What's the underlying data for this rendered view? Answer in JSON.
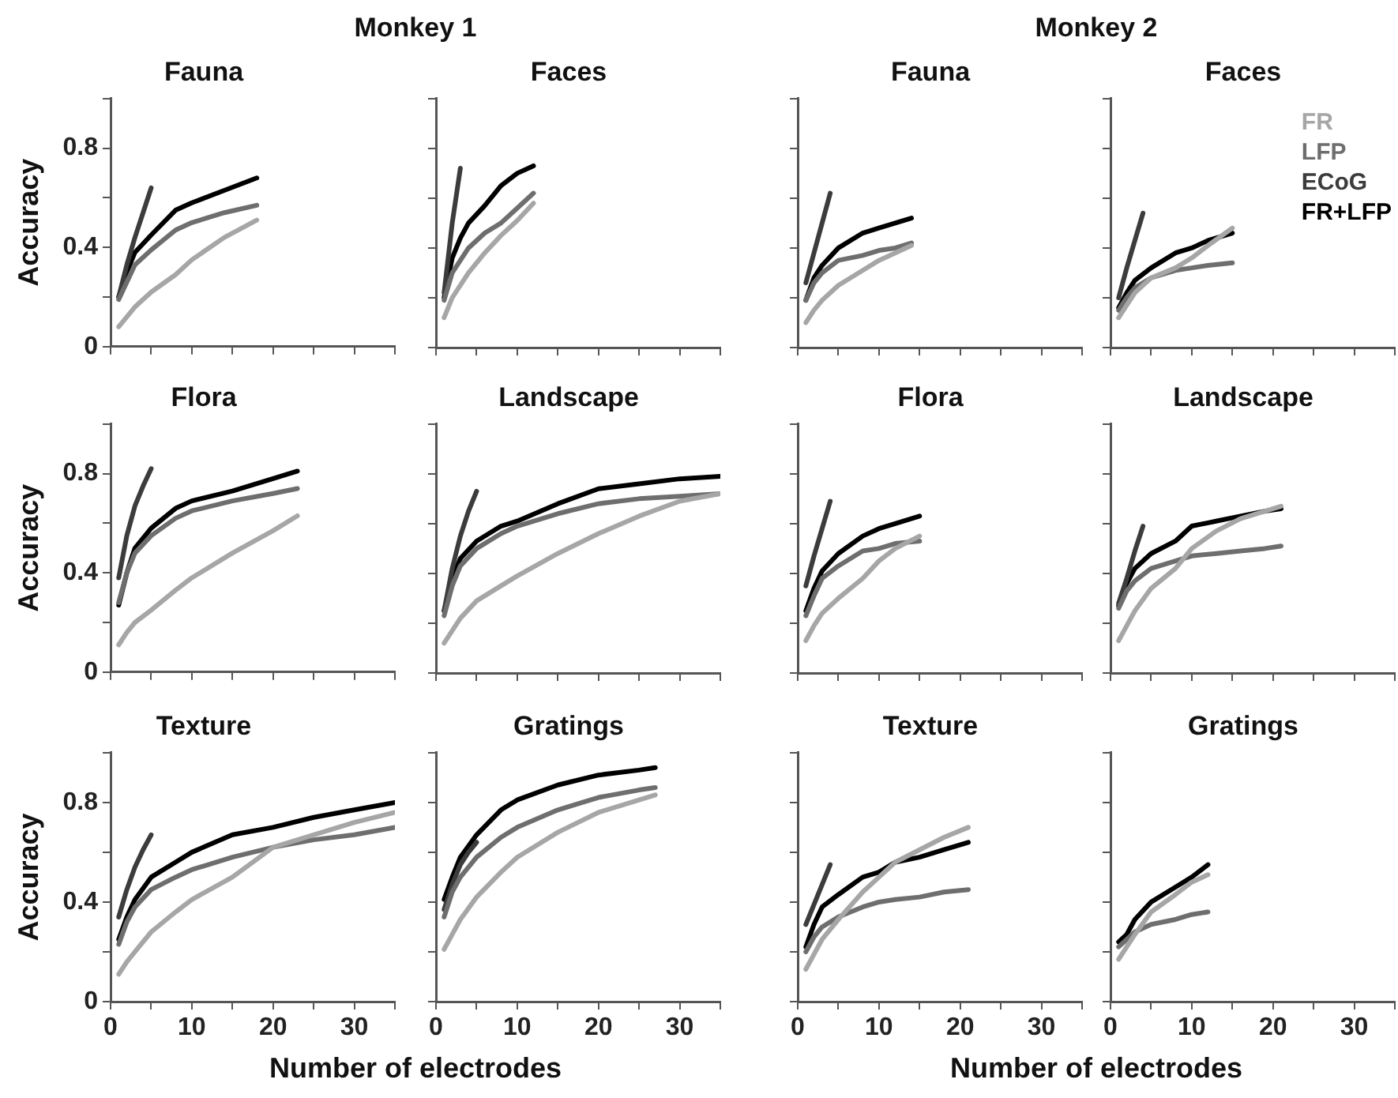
{
  "chart_data": [
    {
      "type": "line",
      "title": "Fauna",
      "annotations": [
        "Monkey 1"
      ],
      "ylabel": "Accuracy",
      "xlim": [
        0,
        35
      ],
      "xticks": [
        0,
        {
          "value": 5,
          "label": null
        },
        10,
        {
          "value": 15,
          "label": null
        },
        20,
        {
          "value": 25,
          "label": null
        },
        30,
        {
          "value": 35,
          "label": null
        }
      ],
      "ylim": [
        0,
        1
      ],
      "yticks": [
        0,
        {
          "value": 0.2,
          "label": null
        },
        0.4,
        {
          "value": 0.6,
          "label": null
        },
        0.8,
        {
          "value": 1,
          "label": null
        }
      ],
      "tick_labels": "y",
      "series": [
        {
          "color": "#a6a6a6",
          "x": [
            1,
            3,
            5,
            8,
            10,
            14,
            18
          ],
          "values": [
            0.08,
            0.16,
            0.22,
            0.29,
            0.35,
            0.44,
            0.51
          ]
        },
        {
          "color": "#6e6e6e",
          "x": [
            1,
            3,
            5,
            8,
            10,
            14,
            18
          ],
          "values": [
            0.19,
            0.33,
            0.39,
            0.47,
            0.5,
            0.54,
            0.57
          ]
        },
        {
          "color": "#3c3c3c",
          "x": [
            1,
            2,
            3,
            4,
            5
          ],
          "values": [
            0.2,
            0.33,
            0.44,
            0.54,
            0.64
          ]
        },
        {
          "color": "#000000",
          "x": [
            1,
            2,
            3,
            5,
            8,
            10,
            14,
            18
          ],
          "values": [
            0.2,
            0.3,
            0.38,
            0.45,
            0.55,
            0.58,
            0.63,
            0.68
          ]
        }
      ]
    },
    {
      "type": "line",
      "title": "Faces",
      "xlim": [
        0,
        35
      ],
      "xticks": [
        0,
        {
          "value": 5,
          "label": null
        },
        10,
        {
          "value": 15,
          "label": null
        },
        20,
        {
          "value": 25,
          "label": null
        },
        30,
        {
          "value": 35,
          "label": null
        }
      ],
      "ylim": [
        0,
        1
      ],
      "yticks": [
        0,
        {
          "value": 0.2,
          "label": null
        },
        0.4,
        {
          "value": 0.6,
          "label": null
        },
        0.8,
        {
          "value": 1,
          "label": null
        }
      ],
      "tick_labels": false,
      "series": [
        {
          "color": "#a6a6a6",
          "x": [
            1,
            2,
            4,
            6,
            8,
            10,
            12
          ],
          "values": [
            0.12,
            0.2,
            0.3,
            0.38,
            0.45,
            0.51,
            0.58
          ]
        },
        {
          "color": "#6e6e6e",
          "x": [
            1,
            2,
            4,
            6,
            8,
            10,
            12
          ],
          "values": [
            0.19,
            0.3,
            0.4,
            0.46,
            0.5,
            0.56,
            0.62
          ]
        },
        {
          "color": "#3c3c3c",
          "x": [
            1,
            2,
            3
          ],
          "values": [
            0.22,
            0.5,
            0.72
          ]
        },
        {
          "color": "#000000",
          "x": [
            1,
            2,
            3,
            4,
            6,
            8,
            10,
            12
          ],
          "values": [
            0.2,
            0.36,
            0.44,
            0.5,
            0.57,
            0.65,
            0.7,
            0.73
          ]
        }
      ]
    },
    {
      "type": "line",
      "title": "Fauna",
      "annotations": [
        "Monkey 2"
      ],
      "xlim": [
        0,
        35
      ],
      "xticks": [
        0,
        {
          "value": 5,
          "label": null
        },
        10,
        {
          "value": 15,
          "label": null
        },
        20,
        {
          "value": 25,
          "label": null
        },
        30,
        {
          "value": 35,
          "label": null
        }
      ],
      "ylim": [
        0,
        1
      ],
      "yticks": [
        0,
        {
          "value": 0.2,
          "label": null
        },
        0.4,
        {
          "value": 0.6,
          "label": null
        },
        0.8,
        {
          "value": 1,
          "label": null
        }
      ],
      "tick_labels": false,
      "series": [
        {
          "color": "#a6a6a6",
          "x": [
            1,
            2,
            3,
            5,
            8,
            10,
            12,
            14
          ],
          "values": [
            0.1,
            0.15,
            0.19,
            0.25,
            0.31,
            0.35,
            0.38,
            0.41
          ]
        },
        {
          "color": "#6e6e6e",
          "x": [
            1,
            2,
            3,
            5,
            8,
            10,
            12,
            14
          ],
          "values": [
            0.19,
            0.26,
            0.3,
            0.35,
            0.37,
            0.39,
            0.4,
            0.42
          ]
        },
        {
          "color": "#3c3c3c",
          "x": [
            1,
            2,
            3,
            4
          ],
          "values": [
            0.26,
            0.38,
            0.5,
            0.62
          ]
        },
        {
          "color": "#000000",
          "x": [
            1,
            2,
            3,
            5,
            8,
            10,
            12,
            14
          ],
          "values": [
            0.19,
            0.28,
            0.33,
            0.4,
            0.46,
            0.48,
            0.5,
            0.52
          ]
        }
      ]
    },
    {
      "type": "line",
      "title": "Faces",
      "legend": "top right",
      "xlim": [
        0,
        35
      ],
      "xticks": [
        0,
        {
          "value": 5,
          "label": null
        },
        10,
        {
          "value": 15,
          "label": null
        },
        20,
        {
          "value": 25,
          "label": null
        },
        30,
        {
          "value": 35,
          "label": null
        }
      ],
      "ylim": [
        0,
        1
      ],
      "yticks": [
        0,
        {
          "value": 0.2,
          "label": null
        },
        0.4,
        {
          "value": 0.6,
          "label": null
        },
        0.8,
        {
          "value": 1,
          "label": null
        }
      ],
      "tick_labels": false,
      "series": [
        {
          "name": "FR",
          "color": "#a6a6a6",
          "x": [
            1,
            2,
            3,
            5,
            8,
            10,
            12,
            15
          ],
          "values": [
            0.12,
            0.17,
            0.22,
            0.28,
            0.32,
            0.36,
            0.41,
            0.48
          ]
        },
        {
          "name": "LFP",
          "color": "#6e6e6e",
          "x": [
            1,
            2,
            3,
            5,
            8,
            10,
            12,
            15
          ],
          "values": [
            0.15,
            0.2,
            0.24,
            0.28,
            0.31,
            0.32,
            0.33,
            0.34
          ]
        },
        {
          "name": "ECoG",
          "color": "#3c3c3c",
          "x": [
            1,
            2,
            3,
            4
          ],
          "values": [
            0.2,
            0.32,
            0.43,
            0.54
          ]
        },
        {
          "name": "FR+LFP",
          "color": "#000000",
          "x": [
            1,
            2,
            3,
            5,
            8,
            10,
            12,
            15
          ],
          "values": [
            0.16,
            0.22,
            0.27,
            0.32,
            0.38,
            0.4,
            0.43,
            0.46
          ]
        }
      ]
    },
    {
      "type": "line",
      "title": "Flora",
      "ylabel": "Accuracy",
      "xlim": [
        0,
        35
      ],
      "xticks": [
        0,
        {
          "value": 5,
          "label": null
        },
        10,
        {
          "value": 15,
          "label": null
        },
        20,
        {
          "value": 25,
          "label": null
        },
        30,
        {
          "value": 35,
          "label": null
        }
      ],
      "ylim": [
        0,
        1
      ],
      "yticks": [
        0,
        {
          "value": 0.2,
          "label": null
        },
        0.4,
        {
          "value": 0.6,
          "label": null
        },
        0.8,
        {
          "value": 1,
          "label": null
        }
      ],
      "tick_labels": "y",
      "series": [
        {
          "color": "#a6a6a6",
          "x": [
            1,
            2,
            3,
            5,
            8,
            10,
            15,
            20,
            23
          ],
          "values": [
            0.11,
            0.16,
            0.2,
            0.25,
            0.33,
            0.38,
            0.48,
            0.57,
            0.63
          ]
        },
        {
          "color": "#6e6e6e",
          "x": [
            1,
            2,
            3,
            5,
            8,
            10,
            15,
            20,
            23
          ],
          "values": [
            0.28,
            0.4,
            0.48,
            0.55,
            0.62,
            0.65,
            0.69,
            0.72,
            0.74
          ]
        },
        {
          "color": "#3c3c3c",
          "x": [
            1,
            2,
            3,
            4,
            5
          ],
          "values": [
            0.38,
            0.55,
            0.67,
            0.75,
            0.82
          ]
        },
        {
          "color": "#000000",
          "x": [
            1,
            2,
            3,
            5,
            8,
            10,
            15,
            20,
            23
          ],
          "values": [
            0.27,
            0.4,
            0.5,
            0.58,
            0.66,
            0.69,
            0.73,
            0.78,
            0.81
          ]
        }
      ]
    },
    {
      "type": "line",
      "title": "Landscape",
      "xlim": [
        0,
        35
      ],
      "xticks": [
        0,
        {
          "value": 5,
          "label": null
        },
        10,
        {
          "value": 15,
          "label": null
        },
        20,
        {
          "value": 25,
          "label": null
        },
        30,
        {
          "value": 35,
          "label": null
        }
      ],
      "ylim": [
        0,
        1
      ],
      "yticks": [
        0,
        {
          "value": 0.2,
          "label": null
        },
        0.4,
        {
          "value": 0.6,
          "label": null
        },
        0.8,
        {
          "value": 1,
          "label": null
        }
      ],
      "tick_labels": false,
      "series": [
        {
          "color": "#a6a6a6",
          "x": [
            1,
            2,
            3,
            5,
            8,
            10,
            15,
            20,
            25,
            30,
            35
          ],
          "values": [
            0.12,
            0.17,
            0.22,
            0.29,
            0.35,
            0.39,
            0.48,
            0.56,
            0.63,
            0.69,
            0.72
          ]
        },
        {
          "color": "#6e6e6e",
          "x": [
            1,
            2,
            3,
            5,
            8,
            10,
            15,
            20,
            25,
            30,
            35
          ],
          "values": [
            0.23,
            0.35,
            0.43,
            0.5,
            0.56,
            0.59,
            0.64,
            0.68,
            0.7,
            0.71,
            0.72
          ]
        },
        {
          "color": "#3c3c3c",
          "x": [
            1,
            2,
            3,
            4,
            5
          ],
          "values": [
            0.25,
            0.42,
            0.55,
            0.65,
            0.73
          ]
        },
        {
          "color": "#000000",
          "x": [
            1,
            2,
            3,
            5,
            8,
            10,
            15,
            20,
            25,
            30,
            35
          ],
          "values": [
            0.25,
            0.38,
            0.46,
            0.53,
            0.59,
            0.61,
            0.68,
            0.74,
            0.76,
            0.78,
            0.79
          ]
        }
      ]
    },
    {
      "type": "line",
      "title": "Flora",
      "xlim": [
        0,
        35
      ],
      "xticks": [
        0,
        {
          "value": 5,
          "label": null
        },
        10,
        {
          "value": 15,
          "label": null
        },
        20,
        {
          "value": 25,
          "label": null
        },
        30,
        {
          "value": 35,
          "label": null
        }
      ],
      "ylim": [
        0,
        1
      ],
      "yticks": [
        0,
        {
          "value": 0.2,
          "label": null
        },
        0.4,
        {
          "value": 0.6,
          "label": null
        },
        0.8,
        {
          "value": 1,
          "label": null
        }
      ],
      "tick_labels": false,
      "series": [
        {
          "color": "#a6a6a6",
          "x": [
            1,
            2,
            3,
            5,
            8,
            10,
            12,
            15
          ],
          "values": [
            0.13,
            0.19,
            0.24,
            0.3,
            0.38,
            0.45,
            0.5,
            0.55
          ]
        },
        {
          "color": "#6e6e6e",
          "x": [
            1,
            2,
            3,
            5,
            8,
            10,
            12,
            15
          ],
          "values": [
            0.23,
            0.31,
            0.38,
            0.43,
            0.49,
            0.5,
            0.52,
            0.53
          ]
        },
        {
          "color": "#3c3c3c",
          "x": [
            1,
            2,
            3,
            4
          ],
          "values": [
            0.35,
            0.47,
            0.58,
            0.69
          ]
        },
        {
          "color": "#000000",
          "x": [
            1,
            2,
            3,
            5,
            8,
            10,
            12,
            15
          ],
          "values": [
            0.25,
            0.34,
            0.41,
            0.48,
            0.55,
            0.58,
            0.6,
            0.63
          ]
        }
      ]
    },
    {
      "type": "line",
      "title": "Landscape",
      "xlim": [
        0,
        35
      ],
      "xticks": [
        0,
        {
          "value": 5,
          "label": null
        },
        10,
        {
          "value": 15,
          "label": null
        },
        20,
        {
          "value": 25,
          "label": null
        },
        30,
        {
          "value": 35,
          "label": null
        }
      ],
      "ylim": [
        0,
        1
      ],
      "yticks": [
        0,
        {
          "value": 0.2,
          "label": null
        },
        0.4,
        {
          "value": 0.6,
          "label": null
        },
        0.8,
        {
          "value": 1,
          "label": null
        }
      ],
      "tick_labels": false,
      "series": [
        {
          "color": "#a6a6a6",
          "x": [
            1,
            2,
            3,
            5,
            8,
            10,
            13,
            16,
            19,
            21
          ],
          "values": [
            0.13,
            0.19,
            0.25,
            0.34,
            0.42,
            0.5,
            0.57,
            0.62,
            0.65,
            0.67
          ]
        },
        {
          "color": "#6e6e6e",
          "x": [
            1,
            2,
            3,
            5,
            8,
            10,
            13,
            16,
            19,
            21
          ],
          "values": [
            0.26,
            0.33,
            0.37,
            0.42,
            0.45,
            0.47,
            0.48,
            0.49,
            0.5,
            0.51
          ]
        },
        {
          "color": "#3c3c3c",
          "x": [
            1,
            2,
            3,
            4
          ],
          "values": [
            0.28,
            0.38,
            0.49,
            0.59
          ]
        },
        {
          "color": "#000000",
          "x": [
            1,
            2,
            3,
            5,
            8,
            10,
            13,
            16,
            19,
            21
          ],
          "values": [
            0.27,
            0.36,
            0.42,
            0.48,
            0.53,
            0.59,
            0.61,
            0.63,
            0.65,
            0.66
          ]
        }
      ]
    },
    {
      "type": "line",
      "title": "Texture",
      "ylabel": "Accuracy",
      "xlabel": "Number of electrodes",
      "xlim": [
        0,
        35
      ],
      "xticks": [
        0,
        {
          "value": 5,
          "label": null
        },
        10,
        {
          "value": 15,
          "label": null
        },
        20,
        {
          "value": 25,
          "label": null
        },
        30,
        {
          "value": 35,
          "label": null
        }
      ],
      "ylim": [
        0,
        1
      ],
      "yticks": [
        0,
        {
          "value": 0.2,
          "label": null
        },
        0.4,
        {
          "value": 0.6,
          "label": null
        },
        0.8,
        {
          "value": 1,
          "label": null
        }
      ],
      "series": [
        {
          "color": "#a6a6a6",
          "x": [
            1,
            2,
            3,
            5,
            8,
            10,
            15,
            20,
            25,
            30,
            35
          ],
          "values": [
            0.11,
            0.16,
            0.2,
            0.28,
            0.36,
            0.41,
            0.5,
            0.62,
            0.67,
            0.72,
            0.76
          ]
        },
        {
          "color": "#6e6e6e",
          "x": [
            1,
            2,
            3,
            5,
            8,
            10,
            15,
            20,
            25,
            30,
            35
          ],
          "values": [
            0.23,
            0.32,
            0.38,
            0.45,
            0.5,
            0.53,
            0.58,
            0.62,
            0.65,
            0.67,
            0.7
          ]
        },
        {
          "color": "#3c3c3c",
          "x": [
            1,
            2,
            3,
            4,
            5
          ],
          "values": [
            0.34,
            0.45,
            0.54,
            0.61,
            0.67
          ]
        },
        {
          "color": "#000000",
          "x": [
            1,
            2,
            3,
            5,
            8,
            10,
            15,
            20,
            25,
            30,
            35
          ],
          "values": [
            0.25,
            0.34,
            0.41,
            0.5,
            0.56,
            0.6,
            0.67,
            0.7,
            0.74,
            0.77,
            0.8
          ]
        }
      ]
    },
    {
      "type": "line",
      "title": "Gratings",
      "xlim": [
        0,
        35
      ],
      "xticks": [
        0,
        {
          "value": 5,
          "label": null
        },
        10,
        {
          "value": 15,
          "label": null
        },
        20,
        {
          "value": 25,
          "label": null
        },
        30,
        {
          "value": 35,
          "label": null
        }
      ],
      "ylim": [
        0,
        1
      ],
      "yticks": [
        0,
        {
          "value": 0.2,
          "label": null
        },
        0.4,
        {
          "value": 0.6,
          "label": null
        },
        0.8,
        {
          "value": 1,
          "label": null
        }
      ],
      "tick_labels": "x",
      "series": [
        {
          "color": "#a6a6a6",
          "x": [
            1,
            2,
            3,
            5,
            8,
            10,
            15,
            20,
            25,
            27
          ],
          "values": [
            0.21,
            0.27,
            0.33,
            0.42,
            0.52,
            0.58,
            0.68,
            0.76,
            0.81,
            0.83
          ]
        },
        {
          "color": "#6e6e6e",
          "x": [
            1,
            2,
            3,
            5,
            8,
            10,
            15,
            20,
            25,
            27
          ],
          "values": [
            0.34,
            0.44,
            0.5,
            0.58,
            0.66,
            0.7,
            0.77,
            0.82,
            0.85,
            0.86
          ]
        },
        {
          "color": "#3c3c3c",
          "x": [
            1,
            2,
            3,
            4,
            5
          ],
          "values": [
            0.37,
            0.47,
            0.55,
            0.6,
            0.64
          ]
        },
        {
          "color": "#000000",
          "x": [
            1,
            2,
            3,
            5,
            8,
            10,
            15,
            20,
            25,
            27
          ],
          "values": [
            0.41,
            0.5,
            0.58,
            0.67,
            0.77,
            0.81,
            0.87,
            0.91,
            0.93,
            0.94
          ]
        }
      ]
    },
    {
      "type": "line",
      "title": "Texture",
      "xlabel": "Number of electrodes",
      "xlim": [
        0,
        35
      ],
      "xticks": [
        0,
        {
          "value": 5,
          "label": null
        },
        10,
        {
          "value": 15,
          "label": null
        },
        20,
        {
          "value": 25,
          "label": null
        },
        30,
        {
          "value": 35,
          "label": null
        }
      ],
      "ylim": [
        0,
        1
      ],
      "yticks": [
        0,
        {
          "value": 0.2,
          "label": null
        },
        0.4,
        {
          "value": 0.6,
          "label": null
        },
        0.8,
        {
          "value": 1,
          "label": null
        }
      ],
      "tick_labels": "x",
      "series": [
        {
          "color": "#a6a6a6",
          "x": [
            1,
            2,
            3,
            5,
            8,
            10,
            12,
            15,
            18,
            21
          ],
          "values": [
            0.13,
            0.19,
            0.25,
            0.33,
            0.44,
            0.5,
            0.56,
            0.61,
            0.66,
            0.7
          ]
        },
        {
          "color": "#6e6e6e",
          "x": [
            1,
            2,
            3,
            5,
            8,
            10,
            12,
            15,
            18,
            21
          ],
          "values": [
            0.2,
            0.26,
            0.3,
            0.34,
            0.38,
            0.4,
            0.41,
            0.42,
            0.44,
            0.45
          ]
        },
        {
          "color": "#3c3c3c",
          "x": [
            1,
            2,
            3,
            4
          ],
          "values": [
            0.31,
            0.39,
            0.47,
            0.55
          ]
        },
        {
          "color": "#000000",
          "x": [
            1,
            2,
            3,
            5,
            8,
            10,
            12,
            15,
            18,
            21
          ],
          "values": [
            0.22,
            0.31,
            0.38,
            0.43,
            0.5,
            0.52,
            0.56,
            0.58,
            0.61,
            0.64
          ]
        }
      ]
    },
    {
      "type": "line",
      "title": "Gratings",
      "xlim": [
        0,
        35
      ],
      "xticks": [
        0,
        {
          "value": 5,
          "label": null
        },
        10,
        {
          "value": 15,
          "label": null
        },
        20,
        {
          "value": 25,
          "label": null
        },
        30,
        {
          "value": 35,
          "label": null
        }
      ],
      "ylim": [
        0,
        1
      ],
      "yticks": [
        0,
        {
          "value": 0.2,
          "label": null
        },
        0.4,
        {
          "value": 0.6,
          "label": null
        },
        0.8,
        {
          "value": 1,
          "label": null
        }
      ],
      "tick_labels": "x",
      "series": [
        {
          "color": "#a6a6a6",
          "x": [
            1,
            2,
            3,
            5,
            8,
            10,
            12
          ],
          "values": [
            0.17,
            0.22,
            0.27,
            0.36,
            0.43,
            0.48,
            0.51
          ]
        },
        {
          "color": "#6e6e6e",
          "x": [
            1,
            2,
            3,
            5,
            8,
            10,
            12
          ],
          "values": [
            0.22,
            0.25,
            0.28,
            0.31,
            0.33,
            0.35,
            0.36
          ]
        },
        {
          "color": "#000000",
          "x": [
            1,
            2,
            3,
            5,
            8,
            10,
            12
          ],
          "values": [
            0.24,
            0.27,
            0.33,
            0.4,
            0.46,
            0.5,
            0.55
          ]
        }
      ]
    }
  ]
}
